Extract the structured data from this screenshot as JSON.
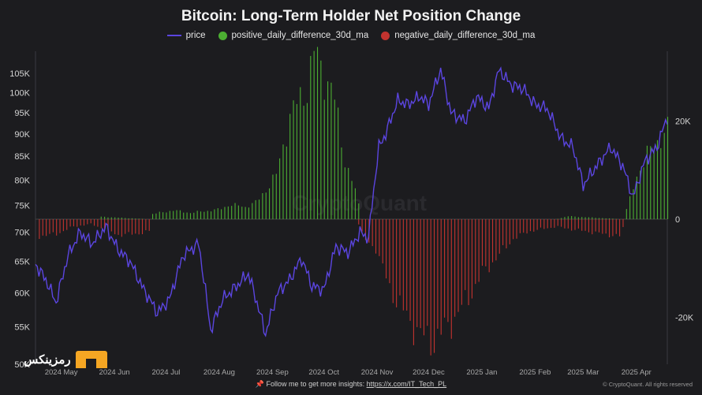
{
  "chart_data": {
    "type": "line",
    "title": "Bitcoin: Long-Term Holder Net Position Change",
    "legend": {
      "placement": "top-center",
      "entries": [
        {
          "name": "price",
          "color": "#5b45e0"
        },
        {
          "name": "positive_daily_difference_30d_ma",
          "color": "#4caf32"
        },
        {
          "name": "negative_daily_difference_30d_ma",
          "color": "#c3332f"
        }
      ]
    },
    "x_ticks": [
      "2024 May",
      "2024 Jun",
      "2024 Jul",
      "2024 Aug",
      "2024 Sep",
      "2024 Oct",
      "2024 Nov",
      "2024 Dec",
      "2025 Jan",
      "2025 Feb",
      "2025 Mar",
      "2025 Apr"
    ],
    "x_range": [
      "2024-04-25",
      "2025-04-28"
    ],
    "y_left": {
      "ticks": [
        "50K",
        "55K",
        "60K",
        "65K",
        "70K",
        "75K",
        "80K",
        "85K",
        "90K",
        "95K",
        "100K",
        "105K"
      ],
      "scale": "log",
      "range": [
        50000,
        110000
      ]
    },
    "y_right": {
      "ticks": [
        "20K",
        "0",
        "-20K"
      ],
      "range": [
        -26000,
        37000
      ]
    },
    "grid": false,
    "series": [
      {
        "name": "price",
        "axis": "left",
        "x": [
          "2024-04-25",
          "2024-05-01",
          "2024-05-07",
          "2024-05-14",
          "2024-05-21",
          "2024-05-28",
          "2024-06-05",
          "2024-06-12",
          "2024-06-19",
          "2024-06-26",
          "2024-07-05",
          "2024-07-12",
          "2024-07-20",
          "2024-07-29",
          "2024-08-05",
          "2024-08-12",
          "2024-08-20",
          "2024-08-27",
          "2024-09-06",
          "2024-09-13",
          "2024-09-20",
          "2024-09-27",
          "2024-10-03",
          "2024-10-10",
          "2024-10-17",
          "2024-10-24",
          "2024-10-31",
          "2024-11-05",
          "2024-11-11",
          "2024-11-15",
          "2024-11-22",
          "2024-11-28",
          "2024-12-05",
          "2024-12-10",
          "2024-12-17",
          "2024-12-23",
          "2024-12-31",
          "2025-01-07",
          "2025-01-14",
          "2025-01-20",
          "2025-01-27",
          "2025-02-03",
          "2025-02-10",
          "2025-02-17",
          "2025-02-25",
          "2025-03-04",
          "2025-03-10",
          "2025-03-18",
          "2025-03-26",
          "2025-04-02",
          "2025-04-08",
          "2025-04-15",
          "2025-04-22",
          "2025-04-28"
        ],
        "values": [
          64500,
          62000,
          58500,
          66000,
          70000,
          68000,
          71000,
          67000,
          65000,
          61000,
          57000,
          59000,
          66000,
          68000,
          54500,
          59000,
          61000,
          63000,
          54000,
          60000,
          62000,
          65500,
          61000,
          60500,
          67500,
          66500,
          70000,
          69000,
          87000,
          90000,
          98000,
          97000,
          99000,
          97000,
          106000,
          95000,
          93000,
          99000,
          96000,
          106000,
          102000,
          101000,
          97000,
          96000,
          89000,
          87000,
          79000,
          83000,
          87000,
          83000,
          76500,
          84000,
          87000,
          94000
        ]
      },
      {
        "name": "positive_daily_difference_30d_ma",
        "axis": "right",
        "x": [
          "2024-04-25",
          "2024-05-31",
          "2024-06-02",
          "2024-06-30",
          "2024-07-01",
          "2024-07-14",
          "2024-07-24",
          "2024-08-10",
          "2024-08-16",
          "2024-08-25",
          "2024-09-01",
          "2024-09-12",
          "2024-09-20",
          "2024-09-30",
          "2024-10-04",
          "2024-10-08",
          "2024-10-15",
          "2024-10-22",
          "2024-10-27",
          "2024-10-30",
          "2024-11-01",
          "2025-02-22",
          "2025-03-01",
          "2025-04-02",
          "2025-04-06",
          "2025-04-10",
          "2025-04-16",
          "2025-04-22",
          "2025-04-28"
        ],
        "values": [
          0,
          0,
          500,
          0,
          1000,
          1800,
          1300,
          2000,
          3000,
          2500,
          3600,
          9000,
          21000,
          27000,
          34000,
          31000,
          26000,
          12000,
          7000,
          3000,
          0,
          0,
          600,
          0,
          4000,
          9000,
          13000,
          16000,
          18000
        ]
      },
      {
        "name": "negative_daily_difference_30d_ma",
        "axis": "right",
        "x": [
          "2024-04-25",
          "2024-04-27",
          "2024-05-07",
          "2024-05-17",
          "2024-05-27",
          "2024-06-04",
          "2024-06-12",
          "2024-06-22",
          "2024-06-30",
          "2024-07-02",
          "2024-10-29",
          "2024-11-02",
          "2024-11-09",
          "2024-11-17",
          "2024-11-27",
          "2024-12-06",
          "2024-12-12",
          "2024-12-18",
          "2024-12-25",
          "2025-01-02",
          "2025-01-10",
          "2025-01-18",
          "2025-01-28",
          "2025-02-06",
          "2025-02-14",
          "2025-02-22",
          "2025-03-02",
          "2025-03-12",
          "2025-03-21",
          "2025-03-31",
          "2025-04-04"
        ],
        "values": [
          0,
          -3500,
          -3000,
          -1500,
          -1000,
          -2000,
          -3200,
          -3000,
          -2500,
          0,
          0,
          -4000,
          -6000,
          -14000,
          -20000,
          -24000,
          -25000,
          -23000,
          -20000,
          -16000,
          -11000,
          -8000,
          -4000,
          -2500,
          -2000,
          -1500,
          -2000,
          -2500,
          -3000,
          -3500,
          0
        ]
      }
    ]
  },
  "watermark": "CryptoQuant",
  "logo_text": "رمزینکس",
  "footer": {
    "prefix": "📌 Follow me to get more insights: ",
    "link": "https://x.com/IT_Tech_PL"
  },
  "copyright": "© CryptoQuant. All rights reserved"
}
